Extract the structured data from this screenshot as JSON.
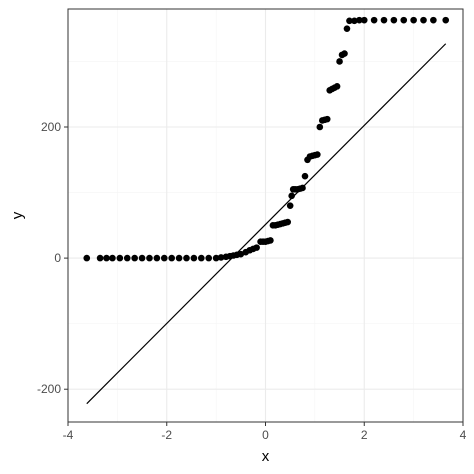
{
  "chart_data": {
    "type": "scatter",
    "title": "",
    "xlabel": "x",
    "ylabel": "y",
    "xlim": [
      -4,
      4
    ],
    "ylim": [
      -250,
      380
    ],
    "x_ticks": [
      -4,
      -2,
      0,
      2,
      4
    ],
    "x_tick_labels": [
      "-4",
      "-2",
      "0",
      "2",
      "4"
    ],
    "y_ticks": [
      -200,
      0,
      200
    ],
    "y_tick_labels": [
      "-200",
      "0",
      "200"
    ],
    "grid": true,
    "legend": "none",
    "colors": {
      "points": "#000000",
      "line": "#000000",
      "grid_major": "#ebebeb",
      "grid_minor": "#f5f5f5",
      "panel_border": "#333333",
      "background": "#ffffff"
    },
    "series": [
      {
        "kind": "points",
        "x": [
          -3.62,
          -3.35,
          -3.22,
          -3.1,
          -2.95,
          -2.8,
          -2.65,
          -2.5,
          -2.35,
          -2.2,
          -2.05,
          -1.9,
          -1.75,
          -1.6,
          -1.45,
          -1.3,
          -1.15,
          -1.0,
          -0.9,
          -0.8,
          -0.72,
          -0.65,
          -0.58,
          -0.5,
          -0.4,
          -0.32,
          -0.25,
          -0.18,
          -0.1,
          -0.05,
          0.0,
          0.05,
          0.1,
          0.15,
          0.2,
          0.25,
          0.3,
          0.35,
          0.4,
          0.45,
          0.5,
          0.53,
          0.56,
          0.6,
          0.65,
          0.7,
          0.75,
          0.8,
          0.85,
          0.9,
          0.95,
          1.0,
          1.05,
          1.1,
          1.15,
          1.2,
          1.25,
          1.3,
          1.35,
          1.4,
          1.45,
          1.5,
          1.55,
          1.6,
          1.65,
          1.7,
          1.8,
          1.9,
          2.0,
          2.2,
          2.4,
          2.6,
          2.8,
          3.0,
          3.2,
          3.4,
          3.65
        ],
        "y": [
          0,
          0,
          0,
          0,
          0,
          0,
          0,
          0,
          0,
          0,
          0,
          0,
          0,
          0,
          0,
          0,
          0,
          0,
          1,
          2,
          3,
          4,
          5,
          6,
          9,
          12,
          14,
          16,
          25,
          25,
          25,
          26,
          27,
          50,
          50,
          51,
          52,
          53,
          54,
          55,
          80,
          95,
          105,
          105,
          105,
          106,
          107,
          125,
          150,
          155,
          156,
          157,
          158,
          200,
          210,
          211,
          212,
          256,
          258,
          260,
          262,
          300,
          310,
          312,
          350,
          362,
          362,
          363,
          363,
          363,
          363,
          363,
          363,
          363,
          363,
          363,
          363
        ]
      },
      {
        "kind": "line",
        "x": [
          -3.62,
          3.65
        ],
        "y": [
          -222,
          327
        ]
      }
    ]
  }
}
